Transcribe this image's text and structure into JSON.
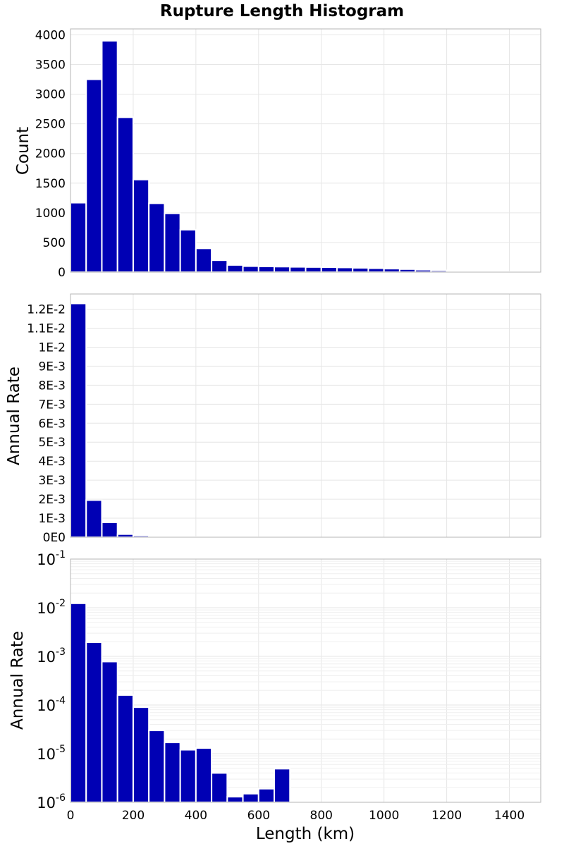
{
  "chart_data": [
    {
      "type": "bar",
      "title": "Rupture Length Histogram",
      "ylabel": "Count",
      "xlim": [
        0,
        1500
      ],
      "ylim": [
        0,
        4100
      ],
      "yticks": [
        0,
        500,
        1000,
        1500,
        2000,
        2500,
        3000,
        3500,
        4000
      ],
      "ytick_labels": [
        "0",
        "500",
        "1000",
        "1500",
        "2000",
        "2500",
        "3000",
        "3500",
        "4000"
      ],
      "bin_width": 50,
      "x": [
        25,
        75,
        125,
        175,
        225,
        275,
        325,
        375,
        425,
        475,
        525,
        575,
        625,
        675,
        725,
        775,
        825,
        875,
        925,
        975,
        1025,
        1075,
        1125,
        1175,
        1225,
        1275,
        1325,
        1375,
        1425
      ],
      "values": [
        1170,
        3250,
        3900,
        2610,
        1560,
        1160,
        990,
        715,
        400,
        200,
        120,
        100,
        95,
        92,
        88,
        85,
        82,
        78,
        72,
        65,
        58,
        50,
        40,
        30,
        20,
        12,
        6,
        3,
        1
      ],
      "color": "#0000b4"
    },
    {
      "type": "bar",
      "ylabel": "Annual Rate",
      "xlim": [
        0,
        1500
      ],
      "ylim": [
        0,
        0.0128
      ],
      "yticks": [
        0,
        0.001,
        0.002,
        0.003,
        0.004,
        0.005,
        0.006,
        0.007,
        0.008,
        0.009,
        0.01,
        0.011,
        0.012
      ],
      "ytick_labels": [
        "0E0",
        "1E-3",
        "2E-3",
        "3E-3",
        "4E-3",
        "5E-3",
        "6E-3",
        "7E-3",
        "8E-3",
        "9E-3",
        "1E-2",
        "1.1E-2",
        "1.2E-2"
      ],
      "bin_width": 50,
      "x": [
        25,
        75,
        125,
        175,
        225,
        275,
        325,
        375,
        425,
        475,
        525,
        575,
        625,
        675
      ],
      "values": [
        0.0123,
        0.00195,
        0.00078,
        0.00016,
        9e-05,
        3e-05,
        1.7e-05,
        1.2e-05,
        1.3e-05,
        4e-06,
        1.3e-06,
        1.5e-06,
        1.9e-06,
        4.9e-06
      ],
      "color": "#0000b4"
    },
    {
      "type": "bar",
      "ylabel": "Annual Rate",
      "xlabel": "Length (km)",
      "scale_y": "log",
      "xlim": [
        0,
        1500
      ],
      "ylim": [
        1e-06,
        0.1
      ],
      "xticks": [
        0,
        200,
        400,
        600,
        800,
        1000,
        1200,
        1400
      ],
      "xtick_labels": [
        "0",
        "200",
        "400",
        "600",
        "800",
        "1000",
        "1200",
        "1400"
      ],
      "ytick_labels": [
        {
          "base": "10",
          "exp": "-6",
          "value": 1e-06
        },
        {
          "base": "10",
          "exp": "-5",
          "value": 1e-05
        },
        {
          "base": "10",
          "exp": "-4",
          "value": 0.0001
        },
        {
          "base": "10",
          "exp": "-3",
          "value": 0.001
        },
        {
          "base": "10",
          "exp": "-2",
          "value": 0.01
        },
        {
          "base": "10",
          "exp": "-1",
          "value": 0.1
        }
      ],
      "bin_width": 50,
      "x": [
        25,
        75,
        125,
        175,
        225,
        275,
        325,
        375,
        425,
        475,
        525,
        575,
        625,
        675
      ],
      "values": [
        0.0123,
        0.00195,
        0.00078,
        0.00016,
        9e-05,
        3e-05,
        1.7e-05,
        1.2e-05,
        1.3e-05,
        4e-06,
        1.3e-06,
        1.5e-06,
        1.9e-06,
        4.9e-06
      ],
      "color": "#0000b4"
    }
  ]
}
